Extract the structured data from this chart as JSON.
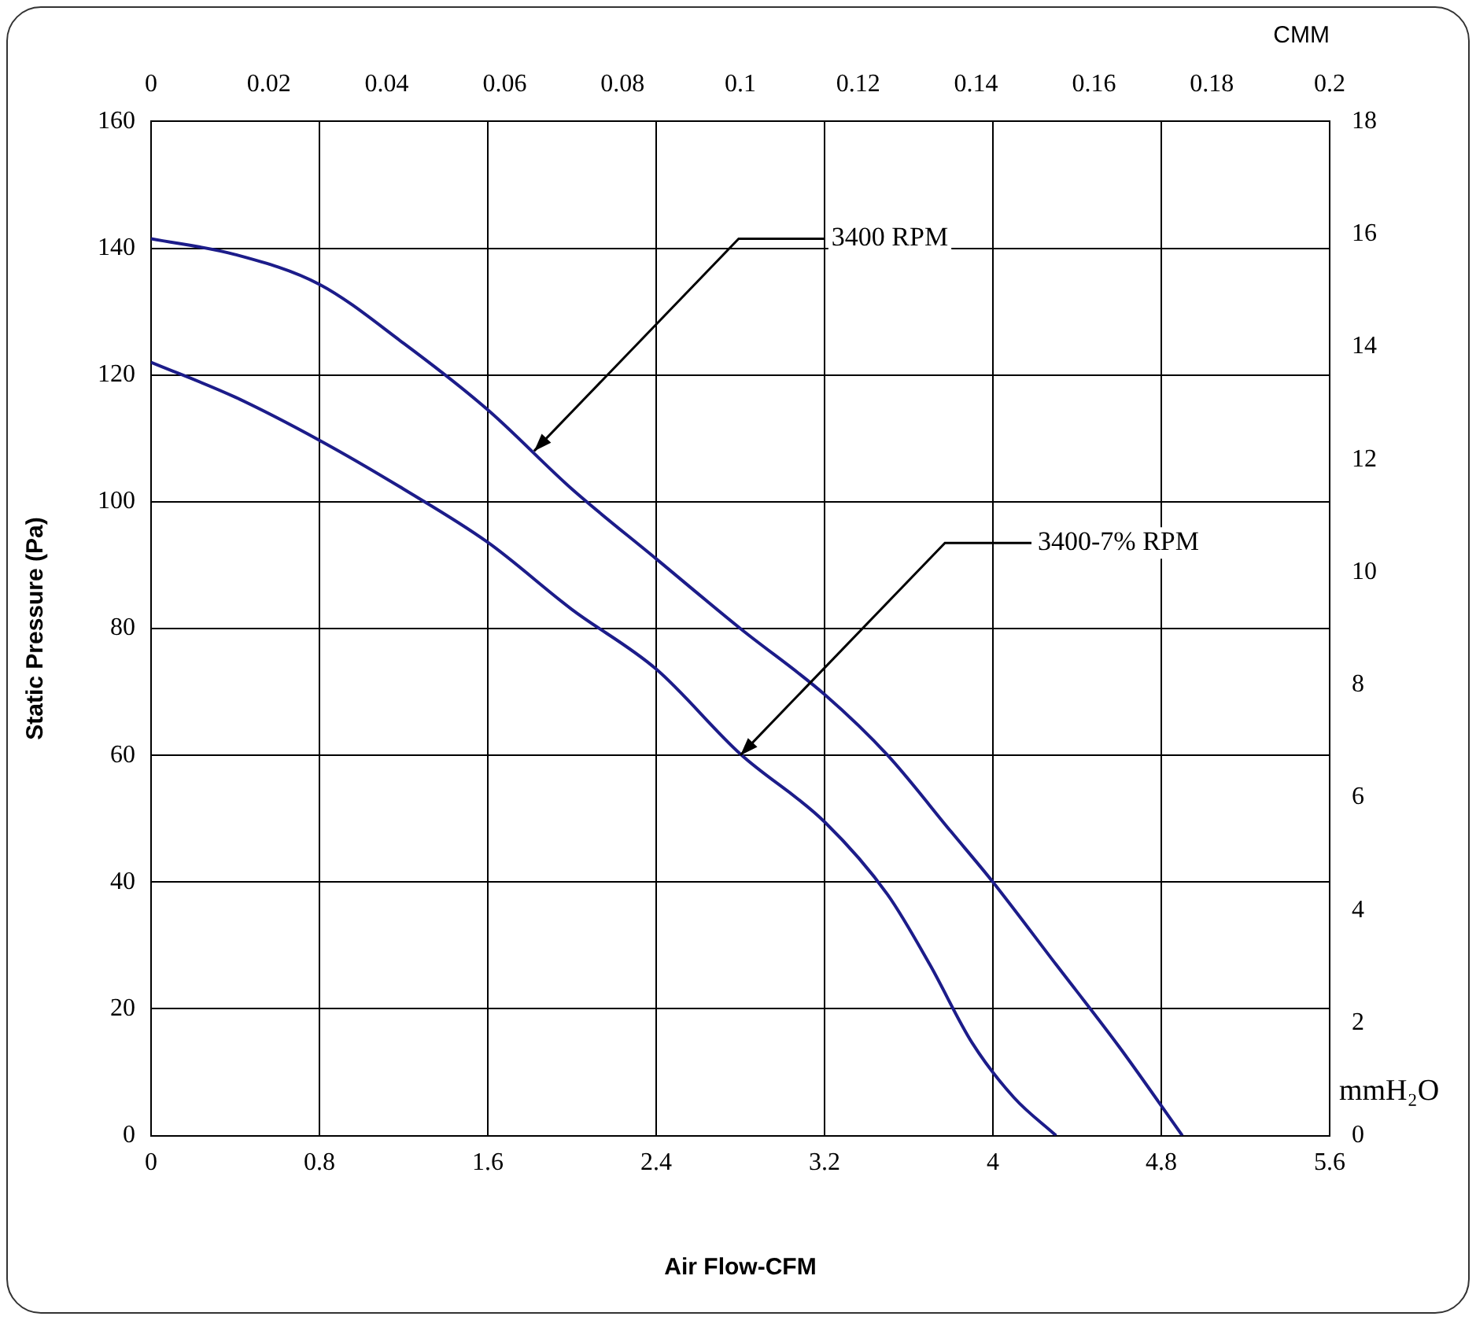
{
  "chart_data": {
    "type": "line",
    "xlabel": "Air Flow-CFM",
    "ylabel": "Static Pressure (Pa)",
    "x2label": "CMM",
    "y2label": "mmH₂O",
    "xlim": [
      0,
      5.6
    ],
    "xticks": [
      0,
      0.8,
      1.6,
      2.4,
      3.2,
      4,
      4.8,
      5.6
    ],
    "ylim": [
      0,
      160
    ],
    "yticks": [
      0,
      20,
      40,
      60,
      80,
      100,
      120,
      140,
      160
    ],
    "x2lim": [
      0,
      0.2
    ],
    "x2ticks": [
      0,
      0.02,
      0.04,
      0.06,
      0.08,
      0.1,
      0.12,
      0.14,
      0.16,
      0.18,
      0.2
    ],
    "y2lim": [
      0,
      18
    ],
    "y2ticks": [
      0,
      2,
      4,
      6,
      8,
      10,
      12,
      14,
      16,
      18
    ],
    "grid": true,
    "legend": false,
    "marker": "none",
    "line_style": "solid",
    "series": [
      {
        "color": "#1c1c8a",
        "x": [
          0,
          0.4,
          0.8,
          1.2,
          1.6,
          2.0,
          2.4,
          2.8,
          3.2,
          3.5,
          3.8,
          4.0,
          4.3,
          4.6,
          4.9
        ],
        "values": [
          141.5,
          139,
          134.3,
          125,
          114.5,
          102,
          91,
          80,
          69.6,
          60,
          48,
          40,
          27,
          14,
          0
        ]
      },
      {
        "color": "#1c1c8a",
        "x": [
          0,
          0.4,
          0.8,
          1.2,
          1.6,
          2.0,
          2.4,
          2.8,
          3.2,
          3.5,
          3.7,
          3.9,
          4.1,
          4.3
        ],
        "values": [
          122,
          116.5,
          109.7,
          102,
          93.6,
          83,
          73.6,
          60.2,
          49.5,
          38,
          27,
          14.7,
          6,
          0
        ]
      }
    ],
    "annotations": [
      {
        "text": "3400 RPM",
        "x": 1.82,
        "y": 108
      },
      {
        "text": "3400-7% RPM",
        "x": 2.8,
        "y": 60
      }
    ]
  }
}
